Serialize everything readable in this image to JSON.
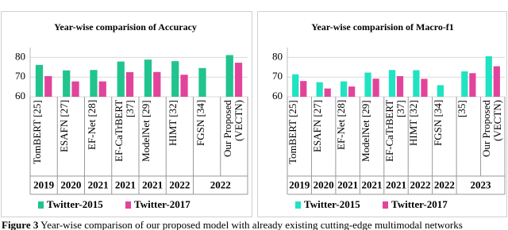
{
  "chart_data": [
    {
      "type": "bar",
      "title": "Year-wise comparision of Accuracy",
      "categories": [
        "TomBERT [25]",
        "ESAFN [27]",
        "EF-Net [28]",
        "EF-CaTrBERT [37]",
        "ModelNet [29]",
        "HIMT [32]",
        "FGSN [34]",
        "Our Proposed (VECTN)"
      ],
      "years": [
        "2019",
        "2020",
        "2021",
        "2021",
        "2021",
        "2022",
        "2022",
        null
      ],
      "series": [
        {
          "name": "Twitter-2015",
          "color": "#21c48e",
          "values": [
            76.2,
            73.4,
            73.6,
            77.9,
            78.9,
            78.1,
            74.6,
            81.2
          ]
        },
        {
          "name": "Twitter-2017",
          "color": "#e2449c",
          "values": [
            70.5,
            67.8,
            67.8,
            72.5,
            72.6,
            71.2,
            null,
            77.3
          ]
        }
      ],
      "ylim": [
        60,
        85
      ],
      "yticks": [
        60,
        70,
        80
      ]
    },
    {
      "type": "bar",
      "title": "Year-wise comparision of Macro-f1",
      "categories": [
        "TomBERT [25]",
        "ESAFN [27]",
        "EF-Net [28]",
        "ModelNet [29]",
        "EF-CaTrBERT [37]",
        "HIMT [32]",
        "FGSN [34]",
        "[35]",
        "Our Proposed (VECTN)"
      ],
      "years": [
        "2019",
        "2020",
        "2021",
        "2021",
        "2021",
        "2022",
        "2022",
        "2023",
        null
      ],
      "series": [
        {
          "name": "Twitter-2015",
          "color": "#1fe3c2",
          "values": [
            71.4,
            67.4,
            67.8,
            72.3,
            73.6,
            73.5,
            65.9,
            72.9,
            80.6
          ]
        },
        {
          "name": "Twitter-2017",
          "color": "#e2449c",
          "values": [
            68.0,
            64.2,
            65.2,
            69.2,
            70.5,
            69.1,
            null,
            72.0,
            75.5
          ]
        }
      ],
      "ylim": [
        60,
        85
      ],
      "yticks": [
        60,
        70,
        80
      ]
    }
  ],
  "caption": {
    "label": "Figure 3",
    "text": "Year-wise comparison of our proposed model with already existing cutting-edge multimodal networks"
  }
}
